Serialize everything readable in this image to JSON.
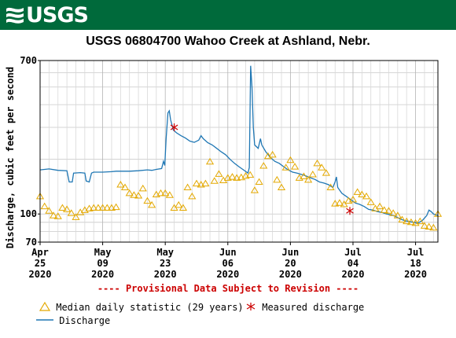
{
  "header": {
    "logo_text": "USGS",
    "logo_icon": "usgs-wave-logo",
    "bg_color": "#006a3b"
  },
  "chart_data": {
    "type": "line",
    "title": "USGS 06804700 Wahoo Creek at Ashland, Nebr.",
    "ylabel": "Discharge, cubic feet per second",
    "xlabel": "",
    "yscale": "log",
    "ylim": [
      70,
      700
    ],
    "y_ticks": [
      70,
      100,
      700
    ],
    "x_ticks": [
      {
        "month": "Apr",
        "day": "25",
        "year": "2020",
        "d": 0
      },
      {
        "month": "May",
        "day": "09",
        "year": "2020",
        "d": 14
      },
      {
        "month": "May",
        "day": "23",
        "year": "2020",
        "d": 28
      },
      {
        "month": "Jun",
        "day": "06",
        "year": "2020",
        "d": 42
      },
      {
        "month": "Jun",
        "day": "20",
        "year": "2020",
        "d": 56
      },
      {
        "month": "Jul",
        "day": "04",
        "year": "2020",
        "d": 70
      },
      {
        "month": "Jul",
        "day": "18",
        "year": "2020",
        "d": 84
      }
    ],
    "xlim_days": [
      0,
      89
    ],
    "grid": true,
    "provisional_note": "---- Provisional Data Subject to Revision ----",
    "series": [
      {
        "name": "Discharge",
        "color": "#1f77b4",
        "points": [
          [
            0,
            175
          ],
          [
            2,
            177
          ],
          [
            4,
            174
          ],
          [
            6,
            173
          ],
          [
            6.5,
            150
          ],
          [
            7.2,
            150
          ],
          [
            7.5,
            168
          ],
          [
            9,
            169
          ],
          [
            10,
            168
          ],
          [
            10.3,
            152
          ],
          [
            11,
            150
          ],
          [
            11.5,
            168
          ],
          [
            12,
            170
          ],
          [
            14,
            170
          ],
          [
            16,
            171
          ],
          [
            17,
            172
          ],
          [
            18,
            172
          ],
          [
            20,
            172
          ],
          [
            22,
            173
          ],
          [
            24,
            175
          ],
          [
            25,
            174
          ],
          [
            26,
            176
          ],
          [
            27.2,
            178
          ],
          [
            27.6,
            195
          ],
          [
            27.9,
            185
          ],
          [
            28.2,
            260
          ],
          [
            28.6,
            360
          ],
          [
            28.9,
            370
          ],
          [
            29.2,
            330
          ],
          [
            29.5,
            310
          ],
          [
            29.8,
            290
          ],
          [
            30.5,
            280
          ],
          [
            31.5,
            270
          ],
          [
            32.5,
            262
          ],
          [
            33.5,
            252
          ],
          [
            34.5,
            248
          ],
          [
            35.5,
            255
          ],
          [
            36,
            270
          ],
          [
            36.5,
            260
          ],
          [
            37.5,
            247
          ],
          [
            38.5,
            240
          ],
          [
            39.5,
            230
          ],
          [
            40.5,
            220
          ],
          [
            41.5,
            212
          ],
          [
            42.5,
            200
          ],
          [
            43.5,
            190
          ],
          [
            44.5,
            182
          ],
          [
            45.5,
            175
          ],
          [
            46.5,
            168
          ],
          [
            46.8,
            180
          ],
          [
            47.1,
            655
          ],
          [
            47.4,
            500
          ],
          [
            47.7,
            300
          ],
          [
            48,
            240
          ],
          [
            48.8,
            230
          ],
          [
            49.3,
            260
          ],
          [
            49.6,
            240
          ],
          [
            50.5,
            220
          ],
          [
            51.5,
            205
          ],
          [
            52.5,
            195
          ],
          [
            53.5,
            190
          ],
          [
            54.5,
            182
          ],
          [
            55.5,
            175
          ],
          [
            56.5,
            170
          ],
          [
            57.5,
            168
          ],
          [
            58.5,
            165
          ],
          [
            59.5,
            162
          ],
          [
            60.5,
            158
          ],
          [
            61.5,
            155
          ],
          [
            62.5,
            150
          ],
          [
            63.5,
            148
          ],
          [
            64.5,
            145
          ],
          [
            65.5,
            140
          ],
          [
            66,
            150
          ],
          [
            66.3,
            160
          ],
          [
            66.6,
            140
          ],
          [
            67.5,
            130
          ],
          [
            68.5,
            125
          ],
          [
            69.5,
            120
          ],
          [
            70.5,
            115
          ],
          [
            71.5,
            113
          ],
          [
            72.5,
            110
          ],
          [
            73.5,
            106
          ],
          [
            74.5,
            105
          ],
          [
            75.5,
            103
          ],
          [
            76.5,
            102
          ],
          [
            77.5,
            100
          ],
          [
            78.5,
            99
          ],
          [
            79.5,
            97
          ],
          [
            80.5,
            94
          ],
          [
            81.5,
            92
          ],
          [
            82.5,
            91
          ],
          [
            83.5,
            90
          ],
          [
            84.5,
            89
          ],
          [
            85.5,
            92
          ],
          [
            86.5,
            98
          ],
          [
            87,
            105
          ],
          [
            87.5,
            103
          ],
          [
            88,
            100
          ],
          [
            89,
            98
          ]
        ]
      },
      {
        "name": "Median daily statistic (29 years)",
        "color": "#e3a800",
        "marker": "triangle",
        "points": [
          [
            0,
            125
          ],
          [
            1,
            110
          ],
          [
            2,
            104
          ],
          [
            3,
            98
          ],
          [
            4,
            97
          ],
          [
            5,
            108
          ],
          [
            6,
            106
          ],
          [
            7,
            101
          ],
          [
            8,
            96
          ],
          [
            9,
            102
          ],
          [
            10,
            105
          ],
          [
            11,
            107
          ],
          [
            12,
            108
          ],
          [
            13,
            108
          ],
          [
            14,
            108
          ],
          [
            15,
            108
          ],
          [
            16,
            108
          ],
          [
            17,
            109
          ],
          [
            18,
            145
          ],
          [
            19,
            140
          ],
          [
            20,
            130
          ],
          [
            21,
            127
          ],
          [
            22,
            126
          ],
          [
            23,
            138
          ],
          [
            24,
            118
          ],
          [
            25,
            112
          ],
          [
            26,
            128
          ],
          [
            27,
            130
          ],
          [
            28,
            130
          ],
          [
            29,
            127
          ],
          [
            30,
            108
          ],
          [
            31,
            112
          ],
          [
            32,
            108
          ],
          [
            33,
            140
          ],
          [
            34,
            125
          ],
          [
            35,
            147
          ],
          [
            36,
            145
          ],
          [
            37,
            147
          ],
          [
            38,
            194
          ],
          [
            39,
            152
          ],
          [
            40,
            166
          ],
          [
            41,
            153
          ],
          [
            42,
            158
          ],
          [
            43,
            160
          ],
          [
            44,
            158
          ],
          [
            45,
            159
          ],
          [
            46,
            162
          ],
          [
            47,
            164
          ],
          [
            48,
            135
          ],
          [
            49,
            150
          ],
          [
            50,
            184
          ],
          [
            51,
            208
          ],
          [
            52,
            212
          ],
          [
            53,
            154
          ],
          [
            54,
            140
          ],
          [
            55,
            180
          ],
          [
            56,
            198
          ],
          [
            57,
            182
          ],
          [
            58,
            158
          ],
          [
            59,
            161
          ],
          [
            60,
            154
          ],
          [
            61,
            165
          ],
          [
            62,
            190
          ],
          [
            63,
            180
          ],
          [
            64,
            168
          ],
          [
            65,
            140
          ],
          [
            66,
            114
          ],
          [
            67,
            115
          ],
          [
            68,
            113
          ],
          [
            69,
            118
          ],
          [
            70,
            120
          ],
          [
            71,
            132
          ],
          [
            72,
            128
          ],
          [
            73,
            125
          ],
          [
            74,
            116
          ],
          [
            75,
            107
          ],
          [
            76,
            110
          ],
          [
            77,
            105
          ],
          [
            78,
            104
          ],
          [
            79,
            101
          ],
          [
            80,
            98
          ],
          [
            81,
            93
          ],
          [
            82,
            91
          ],
          [
            83,
            90
          ],
          [
            84,
            89
          ],
          [
            85,
            91
          ],
          [
            86,
            86
          ],
          [
            87,
            85
          ],
          [
            88,
            84
          ],
          [
            89,
            100
          ]
        ]
      },
      {
        "name": "Measured discharge",
        "color": "#cc0000",
        "marker": "asterisk",
        "points": [
          [
            30,
            300
          ],
          [
            69.3,
            104
          ]
        ]
      }
    ]
  },
  "legend": {
    "median": "Median daily statistic (29 years)",
    "measured": "Measured discharge",
    "discharge": "Discharge"
  }
}
